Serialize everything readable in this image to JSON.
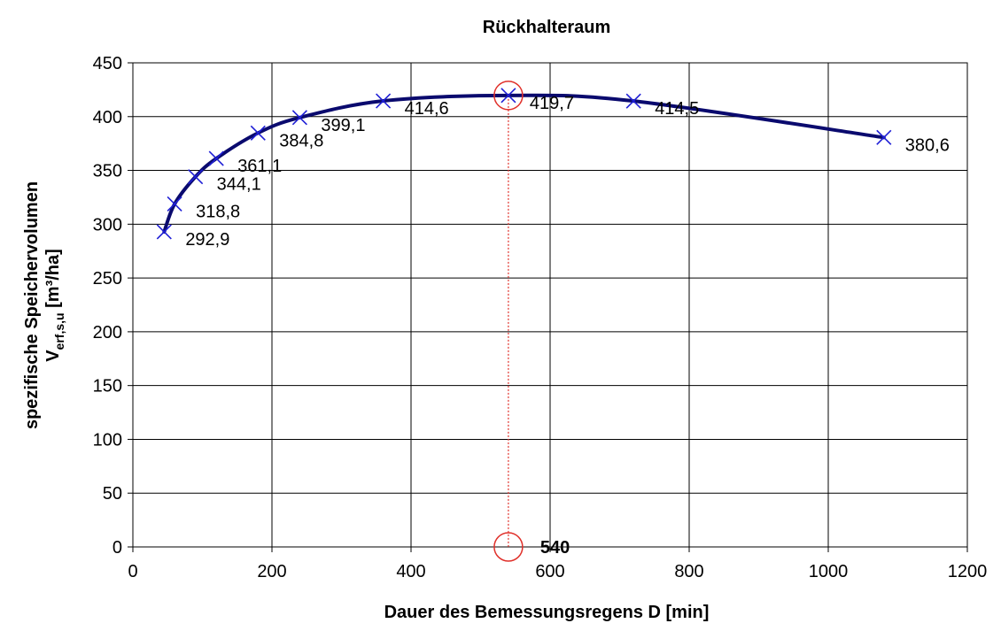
{
  "chart_data": {
    "type": "line",
    "title": "Rückhalteraum",
    "xlabel": "Dauer des Bemessungsregens D [min]",
    "ylabel_line1": "spezifische Speichervolumen",
    "ylabel_line2_main": "V",
    "ylabel_line2_sub": "erf,s,u",
    "ylabel_line2_unit": " [m³/ha]",
    "xlim": [
      0,
      1200
    ],
    "ylim": [
      0,
      450
    ],
    "x_ticks": [
      "0",
      "200",
      "400",
      "600",
      "800",
      "1000",
      "1200"
    ],
    "y_ticks": [
      "0",
      "50",
      "100",
      "150",
      "200",
      "250",
      "300",
      "350",
      "400",
      "450"
    ],
    "grid": true,
    "series": [
      {
        "x": [
          45,
          60,
          90,
          120,
          180,
          240,
          360,
          540,
          720,
          1080
        ],
        "values": [
          292.9,
          318.8,
          344.1,
          361.1,
          384.8,
          399.1,
          414.6,
          419.7,
          414.5,
          380.6
        ],
        "labels": [
          "292,9",
          "318,8",
          "344,1",
          "361,1",
          "384,8",
          "399,1",
          "414,6",
          "419,7",
          "414,5",
          "380,6"
        ]
      }
    ],
    "marker": {
      "x": 540,
      "y": 419.7,
      "label": "540"
    },
    "colors": {
      "line": "#0a0a6e",
      "markers": "#1f1fd6",
      "highlight": "#e0302a"
    }
  }
}
